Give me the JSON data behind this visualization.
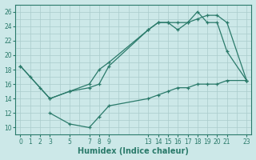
{
  "bg_color": "#cce8e8",
  "grid_color": "#aacccc",
  "line_color": "#2a7a6a",
  "xlabel": "Humidex (Indice chaleur)",
  "xlim": [
    -0.5,
    23.5
  ],
  "ylim": [
    9.0,
    27.0
  ],
  "yticks": [
    10,
    12,
    14,
    16,
    18,
    20,
    22,
    24,
    26
  ],
  "xticks": [
    0,
    1,
    2,
    3,
    5,
    7,
    8,
    9,
    13,
    14,
    15,
    16,
    17,
    18,
    19,
    20,
    21,
    23
  ],
  "line1_x": [
    0,
    1,
    2,
    3,
    5,
    7,
    8,
    9,
    13,
    14,
    15,
    16,
    17,
    18,
    19,
    20,
    21,
    23
  ],
  "line1_y": [
    18.5,
    17.0,
    15.5,
    14.0,
    15.0,
    15.5,
    16.0,
    18.5,
    23.5,
    24.5,
    24.5,
    24.5,
    24.5,
    25.0,
    25.5,
    25.5,
    24.5,
    16.5
  ],
  "line2_x": [
    0,
    3,
    5,
    7,
    8,
    9,
    13,
    14,
    15,
    16,
    17,
    18,
    19,
    20,
    21,
    23
  ],
  "line2_y": [
    18.5,
    14.0,
    15.0,
    16.0,
    18.0,
    19.0,
    23.5,
    24.5,
    24.5,
    23.5,
    24.5,
    26.0,
    24.5,
    24.5,
    20.5,
    16.5
  ],
  "line3_x": [
    3,
    5,
    7,
    8,
    9,
    13,
    14,
    15,
    16,
    17,
    18,
    19,
    20,
    21,
    23
  ],
  "line3_y": [
    12.0,
    10.5,
    10.0,
    11.5,
    13.0,
    14.0,
    14.5,
    15.0,
    15.5,
    15.5,
    16.0,
    16.0,
    16.0,
    16.5,
    16.5
  ],
  "figwidth": 3.2,
  "figheight": 2.0,
  "dpi": 100
}
